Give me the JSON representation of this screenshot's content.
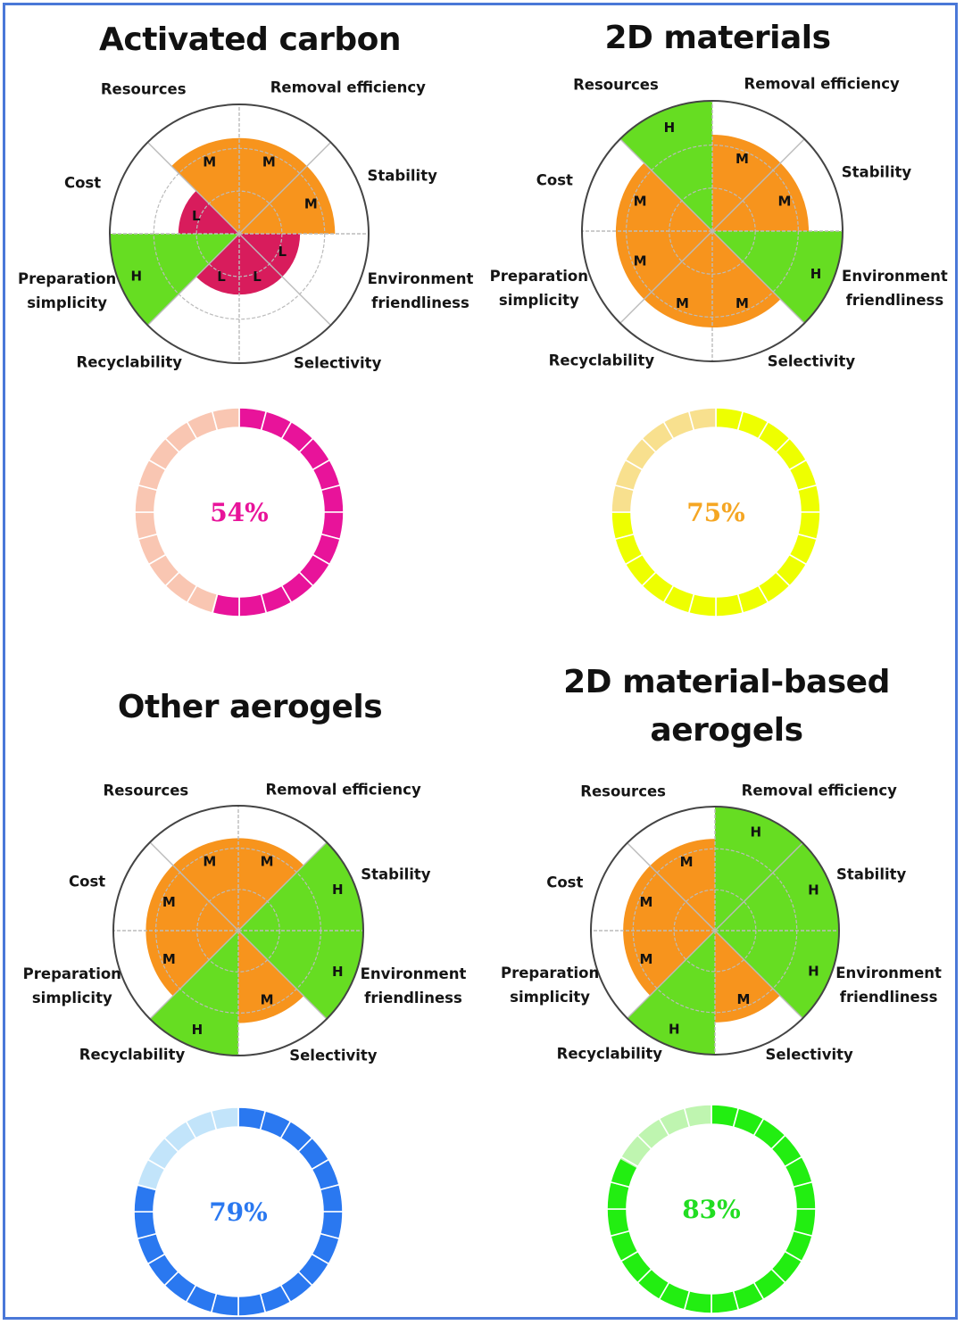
{
  "axes": [
    "Removal efficiency",
    "Stability",
    "Environment friendliness",
    "Selectivity",
    "Recyclability",
    "Preparation simplicity",
    "Cost",
    "Resources"
  ],
  "axis_label_lines": {
    "Removal efficiency": [
      "Removal efficiency"
    ],
    "Stability": [
      "Stability"
    ],
    "Environment friendliness": [
      "Environment",
      "friendliness"
    ],
    "Selectivity": [
      "Selectivity"
    ],
    "Recyclability": [
      "Recyclability"
    ],
    "Preparation simplicity": [
      "Preparation",
      "simplicity"
    ],
    "Cost": [
      "Cost"
    ],
    "Resources": [
      "Resources"
    ]
  },
  "level_colors": {
    "L": "#d81c5c",
    "M": "#f7941d",
    "H": "#66dd22"
  },
  "outline_color": "#444444",
  "frame_color": "#4a78d8",
  "panels": [
    {
      "title_lines": [
        "Activated carbon"
      ],
      "levels": [
        "M",
        "M",
        "L",
        "L",
        "L",
        "H",
        "L",
        "M"
      ],
      "score_label": "54%",
      "score_percent": 54,
      "ring_color": "#e8139a",
      "ring_light_color": "#f9c6b2",
      "text_color": "#e8139a"
    },
    {
      "title_lines": [
        "2D materials"
      ],
      "levels": [
        "M",
        "M",
        "H",
        "M",
        "M",
        "M",
        "M",
        "H"
      ],
      "score_label": "75%",
      "score_percent": 75,
      "ring_color": "#eeff00",
      "ring_light_color": "#f8e08e",
      "text_color": "#f5a623"
    },
    {
      "title_lines": [
        "Other aerogels"
      ],
      "levels": [
        "M",
        "H",
        "H",
        "M",
        "H",
        "M",
        "M",
        "M"
      ],
      "score_label": "79%",
      "score_percent": 79,
      "ring_color": "#2a78f0",
      "ring_light_color": "#c2e4fa",
      "text_color": "#2a78f0"
    },
    {
      "title_lines": [
        "2D material-based",
        "aerogels"
      ],
      "levels": [
        "H",
        "H",
        "H",
        "M",
        "H",
        "M",
        "M",
        "M"
      ],
      "score_label": "83%",
      "score_percent": 83,
      "ring_color": "#22ee11",
      "ring_light_color": "#bff5b0",
      "text_color": "#22dd22"
    }
  ]
}
